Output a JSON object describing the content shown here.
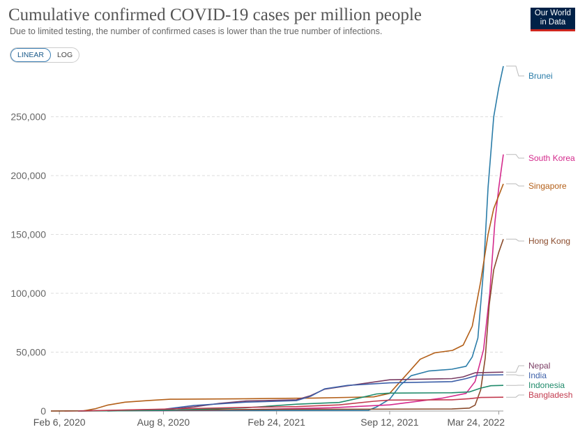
{
  "header": {
    "title": "Cumulative confirmed COVID-19 cases per million people",
    "subtitle": "Due to limited testing, the number of confirmed cases is lower than the true number of infections.",
    "logo_line1": "Our World",
    "logo_line2": "in Data"
  },
  "controls": {
    "linear_label": "LINEAR",
    "log_label": "LOG"
  },
  "chart_data": {
    "type": "line",
    "title": "Cumulative confirmed COVID-19 cases per million people",
    "subtitle": "Due to limited testing, the number of confirmed cases is lower than the true number of infections.",
    "xlabel": "",
    "ylabel": "",
    "x_domain": [
      "2020-01-22",
      "2022-04-01"
    ],
    "ylim": [
      0,
      290000
    ],
    "y_ticks": [
      0,
      50000,
      100000,
      150000,
      200000,
      250000
    ],
    "y_tick_labels": [
      "0",
      "50,000",
      "100,000",
      "150,000",
      "200,000",
      "250,000"
    ],
    "x_ticks": [
      "2020-02-06",
      "2020-08-08",
      "2021-02-24",
      "2021-09-12",
      "2022-03-24"
    ],
    "x_tick_labels": [
      "Feb 6, 2020",
      "Aug 8, 2020",
      "Feb 24, 2021",
      "Sep 12, 2021",
      "Mar 24, 2022"
    ],
    "grid": true,
    "legend": "right (labels at line ends)",
    "series": [
      {
        "name": "Brunei",
        "color": "#2a7ca8",
        "points": [
          [
            "2020-03-10",
            0
          ],
          [
            "2020-04-15",
            300
          ],
          [
            "2021-08-05",
            600
          ],
          [
            "2021-08-20",
            3500
          ],
          [
            "2021-09-12",
            10000
          ],
          [
            "2021-10-01",
            22000
          ],
          [
            "2021-10-20",
            30000
          ],
          [
            "2021-11-20",
            34000
          ],
          [
            "2021-12-31",
            35500
          ],
          [
            "2022-01-25",
            38000
          ],
          [
            "2022-02-05",
            46000
          ],
          [
            "2022-02-15",
            62000
          ],
          [
            "2022-02-25",
            120000
          ],
          [
            "2022-03-05",
            190000
          ],
          [
            "2022-03-15",
            250000
          ],
          [
            "2022-03-24",
            275000
          ],
          [
            "2022-04-01",
            293000
          ]
        ]
      },
      {
        "name": "South Korea",
        "color": "#d42a8c",
        "points": [
          [
            "2020-02-15",
            0
          ],
          [
            "2020-03-20",
            180
          ],
          [
            "2020-08-08",
            300
          ],
          [
            "2020-12-31",
            1200
          ],
          [
            "2021-06-01",
            2800
          ],
          [
            "2021-09-12",
            5200
          ],
          [
            "2021-12-15",
            11000
          ],
          [
            "2022-01-25",
            15000
          ],
          [
            "2022-02-10",
            25000
          ],
          [
            "2022-02-25",
            52000
          ],
          [
            "2022-03-08",
            100000
          ],
          [
            "2022-03-17",
            160000
          ],
          [
            "2022-03-24",
            190000
          ],
          [
            "2022-04-01",
            218000
          ]
        ]
      },
      {
        "name": "Singapore",
        "color": "#b35f18",
        "points": [
          [
            "2020-01-22",
            0
          ],
          [
            "2020-03-20",
            200
          ],
          [
            "2020-04-10",
            2000
          ],
          [
            "2020-05-01",
            5000
          ],
          [
            "2020-06-01",
            7500
          ],
          [
            "2020-07-15",
            9000
          ],
          [
            "2020-08-20",
            10000
          ],
          [
            "2020-12-31",
            10400
          ],
          [
            "2021-05-01",
            11000
          ],
          [
            "2021-08-15",
            12000
          ],
          [
            "2021-09-12",
            15000
          ],
          [
            "2021-10-10",
            30000
          ],
          [
            "2021-11-05",
            44000
          ],
          [
            "2021-12-01",
            49500
          ],
          [
            "2022-01-01",
            51500
          ],
          [
            "2022-01-20",
            56000
          ],
          [
            "2022-02-05",
            72000
          ],
          [
            "2022-02-20",
            110000
          ],
          [
            "2022-03-05",
            150000
          ],
          [
            "2022-03-15",
            172000
          ],
          [
            "2022-04-01",
            193000
          ]
        ]
      },
      {
        "name": "Hong Kong",
        "color": "#8a4b2c",
        "points": [
          [
            "2020-01-22",
            0
          ],
          [
            "2020-08-08",
            600
          ],
          [
            "2021-02-24",
            1400
          ],
          [
            "2021-12-31",
            1700
          ],
          [
            "2022-01-31",
            2500
          ],
          [
            "2022-02-10",
            5000
          ],
          [
            "2022-02-20",
            18000
          ],
          [
            "2022-02-28",
            45000
          ],
          [
            "2022-03-07",
            90000
          ],
          [
            "2022-03-15",
            120000
          ],
          [
            "2022-03-24",
            135000
          ],
          [
            "2022-04-01",
            146000
          ]
        ]
      },
      {
        "name": "Nepal",
        "color": "#7a3c63",
        "points": [
          [
            "2020-05-01",
            0
          ],
          [
            "2020-08-08",
            800
          ],
          [
            "2020-10-01",
            3500
          ],
          [
            "2020-11-15",
            6500
          ],
          [
            "2021-01-01",
            8500
          ],
          [
            "2021-03-31",
            9500
          ],
          [
            "2021-04-25",
            13000
          ],
          [
            "2021-05-20",
            18500
          ],
          [
            "2021-06-30",
            21500
          ],
          [
            "2021-09-12",
            26500
          ],
          [
            "2021-12-31",
            27500
          ],
          [
            "2022-01-20",
            29000
          ],
          [
            "2022-02-10",
            32500
          ],
          [
            "2022-04-01",
            33000
          ]
        ]
      },
      {
        "name": "India",
        "color": "#3c5fa8",
        "points": [
          [
            "2020-03-15",
            0
          ],
          [
            "2020-08-08",
            1500
          ],
          [
            "2020-10-01",
            4700
          ],
          [
            "2020-12-31",
            7500
          ],
          [
            "2021-03-31",
            8800
          ],
          [
            "2021-04-25",
            12500
          ],
          [
            "2021-05-20",
            18800
          ],
          [
            "2021-06-30",
            21800
          ],
          [
            "2021-09-12",
            23900
          ],
          [
            "2021-12-31",
            25000
          ],
          [
            "2022-01-25",
            27500
          ],
          [
            "2022-02-15",
            30500
          ],
          [
            "2022-04-01",
            30800
          ]
        ]
      },
      {
        "name": "Indonesia",
        "color": "#1f8a6a",
        "points": [
          [
            "2020-03-10",
            0
          ],
          [
            "2020-08-08",
            500
          ],
          [
            "2020-12-31",
            2700
          ],
          [
            "2021-04-01",
            5800
          ],
          [
            "2021-06-15",
            7300
          ],
          [
            "2021-07-15",
            10500
          ],
          [
            "2021-08-20",
            14500
          ],
          [
            "2021-09-12",
            15200
          ],
          [
            "2021-12-31",
            15500
          ],
          [
            "2022-01-31",
            16200
          ],
          [
            "2022-02-20",
            19500
          ],
          [
            "2022-03-10",
            21500
          ],
          [
            "2022-04-01",
            21800
          ]
        ]
      },
      {
        "name": "Bangladesh",
        "color": "#c23a4e",
        "points": [
          [
            "2020-03-10",
            0
          ],
          [
            "2020-08-08",
            1600
          ],
          [
            "2020-12-31",
            3100
          ],
          [
            "2021-03-31",
            3700
          ],
          [
            "2021-06-15",
            5200
          ],
          [
            "2021-08-15",
            8300
          ],
          [
            "2021-09-12",
            9300
          ],
          [
            "2021-12-31",
            9500
          ],
          [
            "2022-01-31",
            10500
          ],
          [
            "2022-02-20",
            11500
          ],
          [
            "2022-04-01",
            11700
          ]
        ]
      }
    ]
  }
}
